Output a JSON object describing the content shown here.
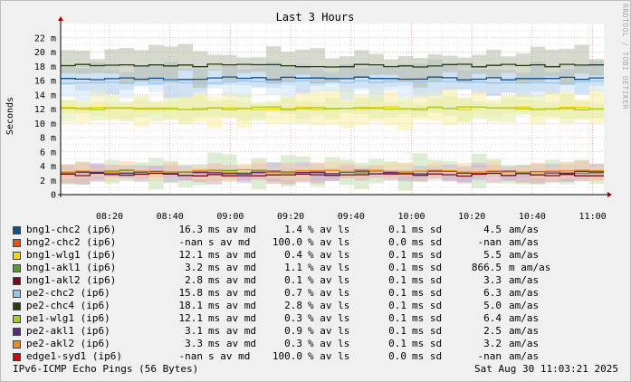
{
  "chart_data": {
    "type": "area",
    "title": "Last 3 Hours",
    "ylabel": "Seconds",
    "ylim": [
      0,
      0.024
    ],
    "y_ticks": [
      "0",
      "2 m",
      "4 m",
      "6 m",
      "8 m",
      "10 m",
      "12 m",
      "14 m",
      "16 m",
      "18 m",
      "20 m",
      "22 m"
    ],
    "x_ticks": [
      "08:20",
      "08:40",
      "09:00",
      "09:20",
      "09:40",
      "10:00",
      "10:20",
      "10:40",
      "11:00"
    ],
    "grid": true,
    "series": [
      {
        "name": "bng1-chc2 (ip6)",
        "color": "#0f4f8f",
        "band": "#a9c6e6",
        "median": 0.0163,
        "spread": 0.0022
      },
      {
        "name": "bng2-chc2 (ip6)",
        "color": "#ef4c12",
        "band": "#f7b8a0",
        "median": null,
        "spread": 0
      },
      {
        "name": "bng1-wlg1 (ip6)",
        "color": "#f5d600",
        "band": "#f7eea0",
        "median": 0.0121,
        "spread": 0.0025
      },
      {
        "name": "bng1-akl1 (ip6)",
        "color": "#51a126",
        "band": "#c2e0b0",
        "median": 0.0032,
        "spread": 0.0022
      },
      {
        "name": "bng1-akl2 (ip6)",
        "color": "#7a0b1c",
        "band": "#d8a7b0",
        "median": 0.0028,
        "spread": 0.0012
      },
      {
        "name": "pe2-chc2 (ip6)",
        "color": "#8ec6f0",
        "band": "#cfe6f8",
        "median": 0.0158,
        "spread": 0.0022
      },
      {
        "name": "pe2-chc4 (ip6)",
        "color": "#2b3b14",
        "band": "#b4b9a6",
        "median": 0.0181,
        "spread": 0.0025
      },
      {
        "name": "pe1-wlg1 (ip6)",
        "color": "#a9cc1c",
        "band": "#e2eda8",
        "median": 0.0121,
        "spread": 0.0018
      },
      {
        "name": "pe2-akl1 (ip6)",
        "color": "#5a2b7c",
        "band": "#c9b4d8",
        "median": 0.0031,
        "spread": 0.0012
      },
      {
        "name": "pe2-akl2 (ip6)",
        "color": "#f08c1e",
        "band": "#f7d3a8",
        "median": 0.0033,
        "spread": 0.0012
      },
      {
        "name": "edge1-syd1 (ip6)",
        "color": "#dd0000",
        "band": "#f2a8a8",
        "median": null,
        "spread": 0
      }
    ]
  },
  "legend": [
    {
      "name": "bng1-chc2 (ip6)",
      "color": "#0f4f8f",
      "avmd": "16.3",
      "u1": "ms av md",
      "avls": "1.4",
      "u2": "% av ls",
      "sd": "0.1",
      "u3": "ms sd",
      "amas": "4.5",
      "u4": "am/as"
    },
    {
      "name": "bng2-chc2 (ip6)",
      "color": "#ef4c12",
      "avmd": "-nan",
      "u1": "s av md",
      "avls": "100.0",
      "u2": "% av ls",
      "sd": "0.0",
      "u3": "ms sd",
      "amas": "-nan",
      "u4": "am/as"
    },
    {
      "name": "bng1-wlg1 (ip6)",
      "color": "#f5d600",
      "avmd": "12.1",
      "u1": "ms av md",
      "avls": "0.4",
      "u2": "% av ls",
      "sd": "0.1",
      "u3": "ms sd",
      "amas": "5.5",
      "u4": "am/as"
    },
    {
      "name": "bng1-akl1 (ip6)",
      "color": "#51a126",
      "avmd": "3.2",
      "u1": "ms av md",
      "avls": "1.1",
      "u2": "% av ls",
      "sd": "0.1",
      "u3": "ms sd",
      "amas": "866.5",
      "u4": "m am/as"
    },
    {
      "name": "bng1-akl2 (ip6)",
      "color": "#7a0b1c",
      "avmd": "2.8",
      "u1": "ms av md",
      "avls": "0.1",
      "u2": "% av ls",
      "sd": "0.1",
      "u3": "ms sd",
      "amas": "3.3",
      "u4": "am/as"
    },
    {
      "name": "pe2-chc2 (ip6)",
      "color": "#8ec6f0",
      "avmd": "15.8",
      "u1": "ms av md",
      "avls": "0.7",
      "u2": "% av ls",
      "sd": "0.1",
      "u3": "ms sd",
      "amas": "6.3",
      "u4": "am/as"
    },
    {
      "name": "pe2-chc4 (ip6)",
      "color": "#2b3b14",
      "avmd": "18.1",
      "u1": "ms av md",
      "avls": "2.8",
      "u2": "% av ls",
      "sd": "0.1",
      "u3": "ms sd",
      "amas": "5.0",
      "u4": "am/as"
    },
    {
      "name": "pe1-wlg1 (ip6)",
      "color": "#a9cc1c",
      "avmd": "12.1",
      "u1": "ms av md",
      "avls": "0.3",
      "u2": "% av ls",
      "sd": "0.1",
      "u3": "ms sd",
      "amas": "6.4",
      "u4": "am/as"
    },
    {
      "name": "pe2-akl1 (ip6)",
      "color": "#5a2b7c",
      "avmd": "3.1",
      "u1": "ms av md",
      "avls": "0.9",
      "u2": "% av ls",
      "sd": "0.1",
      "u3": "ms sd",
      "amas": "2.5",
      "u4": "am/as"
    },
    {
      "name": "pe2-akl2 (ip6)",
      "color": "#f08c1e",
      "avmd": "3.3",
      "u1": "ms av md",
      "avls": "0.3",
      "u2": "% av ls",
      "sd": "0.1",
      "u3": "ms sd",
      "amas": "3.2",
      "u4": "am/as"
    },
    {
      "name": "edge1-syd1 (ip6)",
      "color": "#dd0000",
      "avmd": "-nan",
      "u1": "s av md",
      "avls": "100.0",
      "u2": "% av ls",
      "sd": "0.0",
      "u3": "ms sd",
      "amas": "-nan",
      "u4": "am/as"
    }
  ],
  "footer": {
    "left": "IPv6-ICMP Echo Pings (56 Bytes)",
    "right": "Sat Aug 30 11:03:21 2025"
  },
  "credit": "RRDTOOL / TOBI OETIKER"
}
